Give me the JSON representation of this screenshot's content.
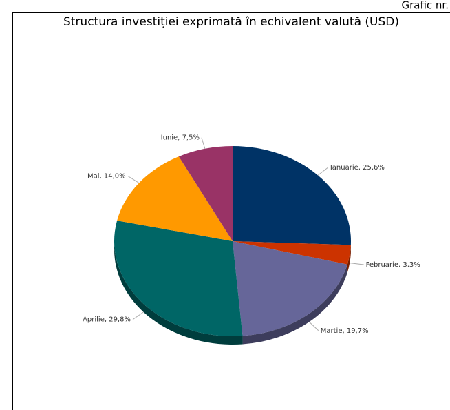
{
  "caption": "Grafic nr.",
  "chart_data": {
    "type": "pie",
    "title": "Structura investiției exprimată în echivalent valută (USD)",
    "values": [
      25.6,
      3.3,
      19.7,
      29.8,
      14.0,
      7.5
    ],
    "value_labels": [
      "Ianuarie, 25,6%",
      "Februarie, 3,3%",
      "Martie, 19,7%",
      "Aprilie, 29,8%",
      "Mai, 14,0%",
      "Iunie, 7,5%"
    ],
    "colors": [
      "#003366",
      "#cc3300",
      "#666699",
      "#006666",
      "#ff9900",
      "#993366"
    ]
  }
}
